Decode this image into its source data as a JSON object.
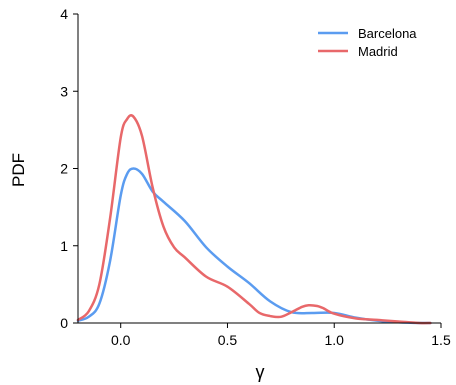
{
  "chart_data": {
    "type": "line",
    "title": "",
    "xlabel": "γ",
    "ylabel": "PDF",
    "xlim": [
      -0.2,
      1.5
    ],
    "ylim": [
      0,
      4
    ],
    "xticks": [
      0.0,
      0.5,
      1.0,
      1.5
    ],
    "xtick_labels": [
      "0.0",
      "0.5",
      "1.0",
      "1.5"
    ],
    "yticks": [
      0,
      1,
      2,
      3,
      4
    ],
    "ytick_labels": [
      "0",
      "1",
      "2",
      "3",
      "4"
    ],
    "grid": false,
    "legend_position": "top-right",
    "series": [
      {
        "name": "Barcelona",
        "color": "#5b9cf0",
        "x": [
          -0.2,
          -0.15,
          -0.1,
          -0.05,
          0.0,
          0.03,
          0.06,
          0.1,
          0.15,
          0.2,
          0.3,
          0.4,
          0.5,
          0.6,
          0.7,
          0.8,
          0.9,
          1.0,
          1.1,
          1.2,
          1.3,
          1.4,
          1.45
        ],
        "y": [
          0.03,
          0.08,
          0.25,
          0.8,
          1.65,
          1.93,
          2.0,
          1.93,
          1.7,
          1.57,
          1.32,
          0.98,
          0.73,
          0.52,
          0.28,
          0.14,
          0.13,
          0.13,
          0.07,
          0.03,
          0.01,
          0.0,
          0.0
        ]
      },
      {
        "name": "Madrid",
        "color": "#e8686a",
        "x": [
          -0.2,
          -0.15,
          -0.1,
          -0.05,
          0.0,
          0.03,
          0.06,
          0.1,
          0.15,
          0.2,
          0.25,
          0.3,
          0.4,
          0.5,
          0.6,
          0.65,
          0.7,
          0.75,
          0.8,
          0.85,
          0.88,
          0.92,
          0.95,
          1.0,
          1.1,
          1.2,
          1.3,
          1.4,
          1.45
        ],
        "y": [
          0.04,
          0.15,
          0.5,
          1.35,
          2.4,
          2.64,
          2.67,
          2.42,
          1.75,
          1.25,
          0.98,
          0.85,
          0.6,
          0.47,
          0.25,
          0.13,
          0.09,
          0.08,
          0.14,
          0.21,
          0.23,
          0.22,
          0.19,
          0.12,
          0.06,
          0.04,
          0.02,
          0.0,
          0.0
        ]
      }
    ]
  }
}
